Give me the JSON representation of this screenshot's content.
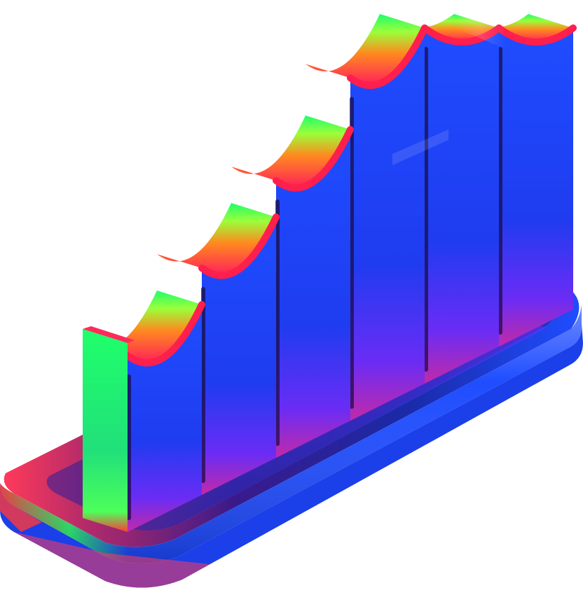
{
  "illustration": {
    "subject": "3d-bar-chart-icon",
    "palette": {
      "blue": "#1f4dff",
      "deep_blue": "#0d1fb8",
      "violet": "#7a2cff",
      "magenta": "#ff2a6d",
      "red": "#ff1f3d",
      "green": "#1fff6a",
      "lime": "#9bff3a",
      "orange": "#ff8a1f",
      "dark_edge": "#1a0a3a"
    },
    "bars": [
      {
        "level": 0.35
      },
      {
        "level": 0.45
      },
      {
        "level": 0.55
      },
      {
        "level": 0.68
      },
      {
        "level": 0.8
      },
      {
        "level": 1.0
      }
    ]
  }
}
